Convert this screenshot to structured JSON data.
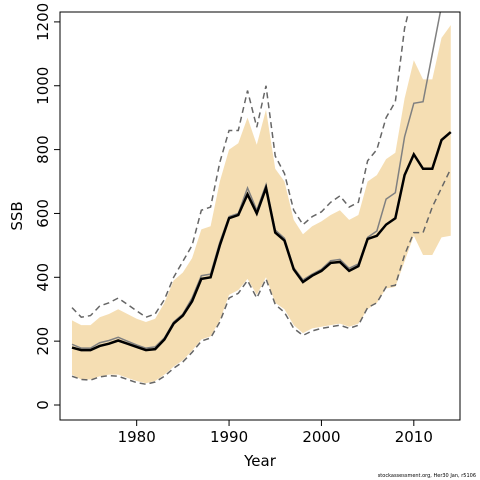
{
  "chart_data": {
    "type": "line",
    "x_label": "Year",
    "y_label": "SSB",
    "footer": "stockassessment.org, Her30 Jan, r5106",
    "x": [
      1973,
      1974,
      1975,
      1976,
      1977,
      1978,
      1979,
      1980,
      1981,
      1982,
      1983,
      1984,
      1985,
      1986,
      1987,
      1988,
      1989,
      1990,
      1991,
      1992,
      1993,
      1994,
      1995,
      1996,
      1997,
      1998,
      1999,
      2000,
      2001,
      2002,
      2003,
      2004,
      2005,
      2006,
      2007,
      2008,
      2009,
      2010,
      2011,
      2012,
      2013,
      2014
    ],
    "xlim": [
      1971.7,
      2015.0
    ],
    "xticks": [
      1980,
      1990,
      2000,
      2010
    ],
    "ylim": [
      -47,
      1231
    ],
    "yticks": [
      0,
      200,
      400,
      600,
      800,
      1000,
      1200
    ],
    "band": {
      "color": "#f5deb3",
      "lower": [
        95,
        80,
        80,
        90,
        95,
        95,
        85,
        75,
        68,
        75,
        95,
        120,
        140,
        170,
        205,
        215,
        265,
        345,
        360,
        395,
        345,
        400,
        320,
        300,
        250,
        225,
        240,
        245,
        250,
        255,
        245,
        255,
        300,
        320,
        365,
        370,
        450,
        530,
        470,
        470,
        525,
        530
      ],
      "upper": [
        265,
        250,
        250,
        275,
        285,
        300,
        285,
        270,
        260,
        270,
        320,
        390,
        415,
        460,
        550,
        560,
        700,
        800,
        820,
        900,
        815,
        925,
        740,
        700,
        580,
        535,
        560,
        575,
        595,
        610,
        580,
        595,
        700,
        720,
        770,
        790,
        960,
        1080,
        1020,
        1020,
        1150,
        1190
      ]
    },
    "series": [
      {
        "color": "#666666",
        "dash": true,
        "values": [
          305,
          275,
          280,
          310,
          320,
          335,
          315,
          295,
          275,
          285,
          330,
          400,
          450,
          500,
          610,
          620,
          760,
          860,
          860,
          985,
          870,
          1000,
          780,
          725,
          610,
          565,
          590,
          605,
          635,
          655,
          620,
          635,
          765,
          800,
          900,
          950,
          1180,
          1300,
          null,
          null,
          null,
          null
        ]
      },
      {
        "color": "#666666",
        "dash": true,
        "values": [
          90,
          80,
          78,
          88,
          92,
          90,
          80,
          70,
          65,
          72,
          90,
          115,
          135,
          165,
          200,
          210,
          260,
          335,
          350,
          390,
          335,
          395,
          315,
          290,
          240,
          218,
          232,
          240,
          245,
          250,
          240,
          250,
          305,
          320,
          370,
          375,
          470,
          540,
          540,
          620,
          680,
          740
        ]
      },
      {
        "color": "#808080",
        "width": 1.5,
        "values": [
          190,
          178,
          178,
          195,
          202,
          212,
          200,
          188,
          178,
          182,
          210,
          260,
          285,
          335,
          405,
          410,
          510,
          590,
          600,
          680,
          610,
          690,
          548,
          522,
          430,
          392,
          410,
          425,
          452,
          456,
          428,
          442,
          525,
          545,
          645,
          665,
          840,
          945,
          950,
          1100,
          1250,
          null
        ]
      },
      {
        "color": "#000000",
        "width": 2.5,
        "values": [
          180,
          172,
          172,
          185,
          192,
          202,
          192,
          182,
          172,
          175,
          205,
          255,
          280,
          325,
          395,
          400,
          500,
          585,
          595,
          660,
          600,
          680,
          540,
          515,
          425,
          385,
          405,
          420,
          445,
          448,
          420,
          435,
          520,
          530,
          565,
          585,
          720,
          785,
          740,
          740,
          830,
          855
        ]
      }
    ]
  }
}
